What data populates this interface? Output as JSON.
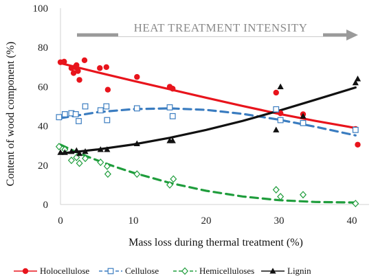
{
  "chart_data": {
    "type": "scatter",
    "xlabel": "Mass loss during thermal treatment  (%)",
    "ylabel": "Content of wood component (%)",
    "xlim": [
      -1,
      42
    ],
    "ylim": [
      0,
      100
    ],
    "xticks": [
      "0",
      "10",
      "20",
      "30",
      "40"
    ],
    "yticks": [
      "0",
      "20",
      "40",
      "60",
      "80",
      "100"
    ],
    "annotation": "HEAT TREATMENT INTENSITY",
    "grid": false,
    "legend_position": "bottom",
    "series": [
      {
        "name": "Holocellulose",
        "color": "#e8141c",
        "marker": "filled-circle",
        "line": "solid",
        "points": [
          [
            0,
            72.5
          ],
          [
            0.5,
            72.8
          ],
          [
            1.5,
            69.5
          ],
          [
            1.8,
            67
          ],
          [
            2,
            70
          ],
          [
            2.2,
            71
          ],
          [
            2.4,
            68
          ],
          [
            2.6,
            63.5
          ],
          [
            3.3,
            73.5
          ],
          [
            5.4,
            69.5
          ],
          [
            6.3,
            70
          ],
          [
            6.5,
            58.5
          ],
          [
            10.5,
            65
          ],
          [
            15,
            60
          ],
          [
            15.4,
            59
          ],
          [
            29.6,
            57
          ],
          [
            30.2,
            46.5
          ],
          [
            33.3,
            46
          ],
          [
            40.5,
            38.5
          ],
          [
            40.8,
            30.5
          ]
        ],
        "trend": [
          [
            0,
            72
          ],
          [
            5,
            67.4
          ],
          [
            10,
            63
          ],
          [
            15,
            58.7
          ],
          [
            20,
            54.4
          ],
          [
            25,
            50.2
          ],
          [
            30,
            46.2
          ],
          [
            35,
            42.6
          ],
          [
            40.5,
            39
          ]
        ]
      },
      {
        "name": "Cellulose",
        "color": "#3a7cc0",
        "marker": "open-square",
        "line": "dashed",
        "points": [
          [
            -0.2,
            44.5
          ],
          [
            0.6,
            46
          ],
          [
            1.5,
            46.5
          ],
          [
            2.1,
            46
          ],
          [
            2.5,
            42.5
          ],
          [
            3.4,
            50
          ],
          [
            5.5,
            48
          ],
          [
            6.3,
            50
          ],
          [
            6.4,
            43
          ],
          [
            10.5,
            49
          ],
          [
            15,
            49.5
          ],
          [
            15.4,
            45
          ],
          [
            29.6,
            48.5
          ],
          [
            30.2,
            43
          ],
          [
            33.3,
            41.5
          ],
          [
            40.5,
            38
          ]
        ],
        "trend": [
          [
            0,
            44
          ],
          [
            5,
            47
          ],
          [
            10,
            48.6
          ],
          [
            15,
            49
          ],
          [
            20,
            48.2
          ],
          [
            25,
            46.2
          ],
          [
            30,
            43.2
          ],
          [
            35,
            39.6
          ],
          [
            40.5,
            35.2
          ]
        ]
      },
      {
        "name": "Hemicelluloses",
        "color": "#1f9d3c",
        "marker": "open-diamond",
        "line": "dashed",
        "points": [
          [
            -0.2,
            29.5
          ],
          [
            0.6,
            28
          ],
          [
            1.5,
            22.5
          ],
          [
            2.2,
            24
          ],
          [
            2.6,
            21
          ],
          [
            3.4,
            23.5
          ],
          [
            5.5,
            21.5
          ],
          [
            6.4,
            19.5
          ],
          [
            6.5,
            15.5
          ],
          [
            10.5,
            15.5
          ],
          [
            15,
            10
          ],
          [
            15.5,
            13
          ],
          [
            29.6,
            7.5
          ],
          [
            30.2,
            4
          ],
          [
            33.3,
            5
          ],
          [
            40.5,
            0.5
          ]
        ],
        "trend": [
          [
            0,
            30.5
          ],
          [
            2,
            27
          ],
          [
            4,
            24
          ],
          [
            6,
            21.2
          ],
          [
            8,
            18.6
          ],
          [
            10,
            16.2
          ],
          [
            15,
            11
          ],
          [
            20,
            7
          ],
          [
            25,
            4.1
          ],
          [
            30,
            2.2
          ],
          [
            35,
            1.3
          ],
          [
            40.5,
            1
          ]
        ]
      },
      {
        "name": "Lignin",
        "color": "#111111",
        "marker": "filled-triangle",
        "line": "solid",
        "points": [
          [
            0,
            26.5
          ],
          [
            0.6,
            26.5
          ],
          [
            1.5,
            27
          ],
          [
            2.2,
            27.5
          ],
          [
            2.6,
            26
          ],
          [
            3.4,
            27
          ],
          [
            5.5,
            28
          ],
          [
            6.4,
            28
          ],
          [
            10.5,
            31
          ],
          [
            15,
            32.5
          ],
          [
            15.4,
            32.5
          ],
          [
            29.6,
            38
          ],
          [
            30.2,
            60
          ],
          [
            33.3,
            45
          ],
          [
            40.5,
            62
          ],
          [
            40.8,
            64
          ]
        ],
        "trend": [
          [
            0,
            26
          ],
          [
            5,
            28
          ],
          [
            10,
            30.6
          ],
          [
            15,
            34
          ],
          [
            20,
            38
          ],
          [
            25,
            42.6
          ],
          [
            30,
            47.8
          ],
          [
            35,
            53.4
          ],
          [
            40.5,
            59.6
          ]
        ]
      }
    ]
  }
}
